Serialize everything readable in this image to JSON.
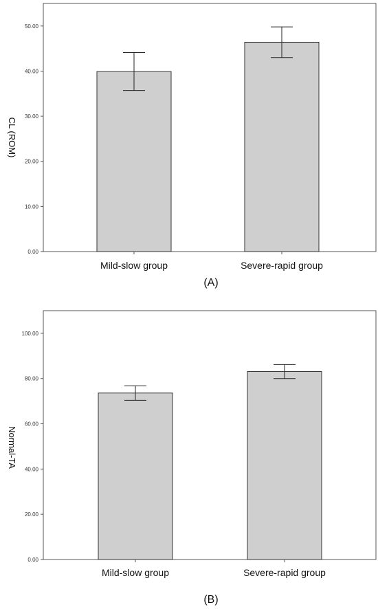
{
  "chart_data": [
    {
      "type": "bar",
      "panel_label": "(A)",
      "ylabel": "CL (ROM)",
      "categories": [
        "Mild-slow group",
        "Severe-rapid group"
      ],
      "values": [
        39.9,
        46.4
      ],
      "error_low": [
        35.7,
        43.0
      ],
      "error_high": [
        44.1,
        49.8
      ],
      "ylim": [
        0,
        55
      ],
      "yticks": [
        0,
        10,
        20,
        30,
        40,
        50
      ],
      "ytick_labels": [
        "0.00",
        "10.00",
        "20.00",
        "30.00",
        "40.00",
        "50.00"
      ],
      "bar_color": "#cfcfcf",
      "grid": false
    },
    {
      "type": "bar",
      "panel_label": "(B)",
      "ylabel": "Normal-TA",
      "categories": [
        "Mild-slow group",
        "Severe-rapid group"
      ],
      "values": [
        73.6,
        83.1
      ],
      "error_low": [
        70.4,
        80.0
      ],
      "error_high": [
        76.8,
        86.2
      ],
      "ylim": [
        0,
        110
      ],
      "yticks": [
        0,
        20,
        40,
        60,
        80,
        100
      ],
      "ytick_labels": [
        "0.00",
        "20.00",
        "40.00",
        "60.00",
        "80.00",
        "100.00"
      ],
      "bar_color": "#cfcfcf",
      "grid": false
    }
  ]
}
